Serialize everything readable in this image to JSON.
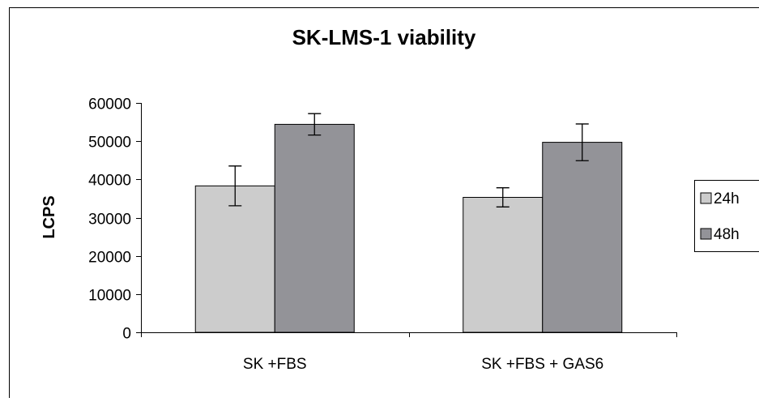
{
  "chart_data": {
    "type": "bar",
    "title": "SK-LMS-1 viability",
    "xlabel": "",
    "ylabel": "LCPS",
    "categories": [
      "SK +FBS",
      "SK +FBS + GAS6"
    ],
    "ylim": [
      0,
      60000
    ],
    "yticks": [
      0,
      10000,
      20000,
      30000,
      40000,
      50000,
      60000
    ],
    "yticks_labels": [
      "0",
      "10000",
      "20000",
      "30000",
      "40000",
      "50000",
      "60000"
    ],
    "grid": false,
    "legend": "right",
    "series": [
      {
        "name": "24h",
        "color": "#cccccc",
        "values": [
          38300,
          35300
        ],
        "errors": [
          5200,
          2500
        ]
      },
      {
        "name": "48h",
        "color": "#939398",
        "values": [
          54400,
          49700
        ],
        "errors": [
          2800,
          4800
        ]
      }
    ]
  }
}
